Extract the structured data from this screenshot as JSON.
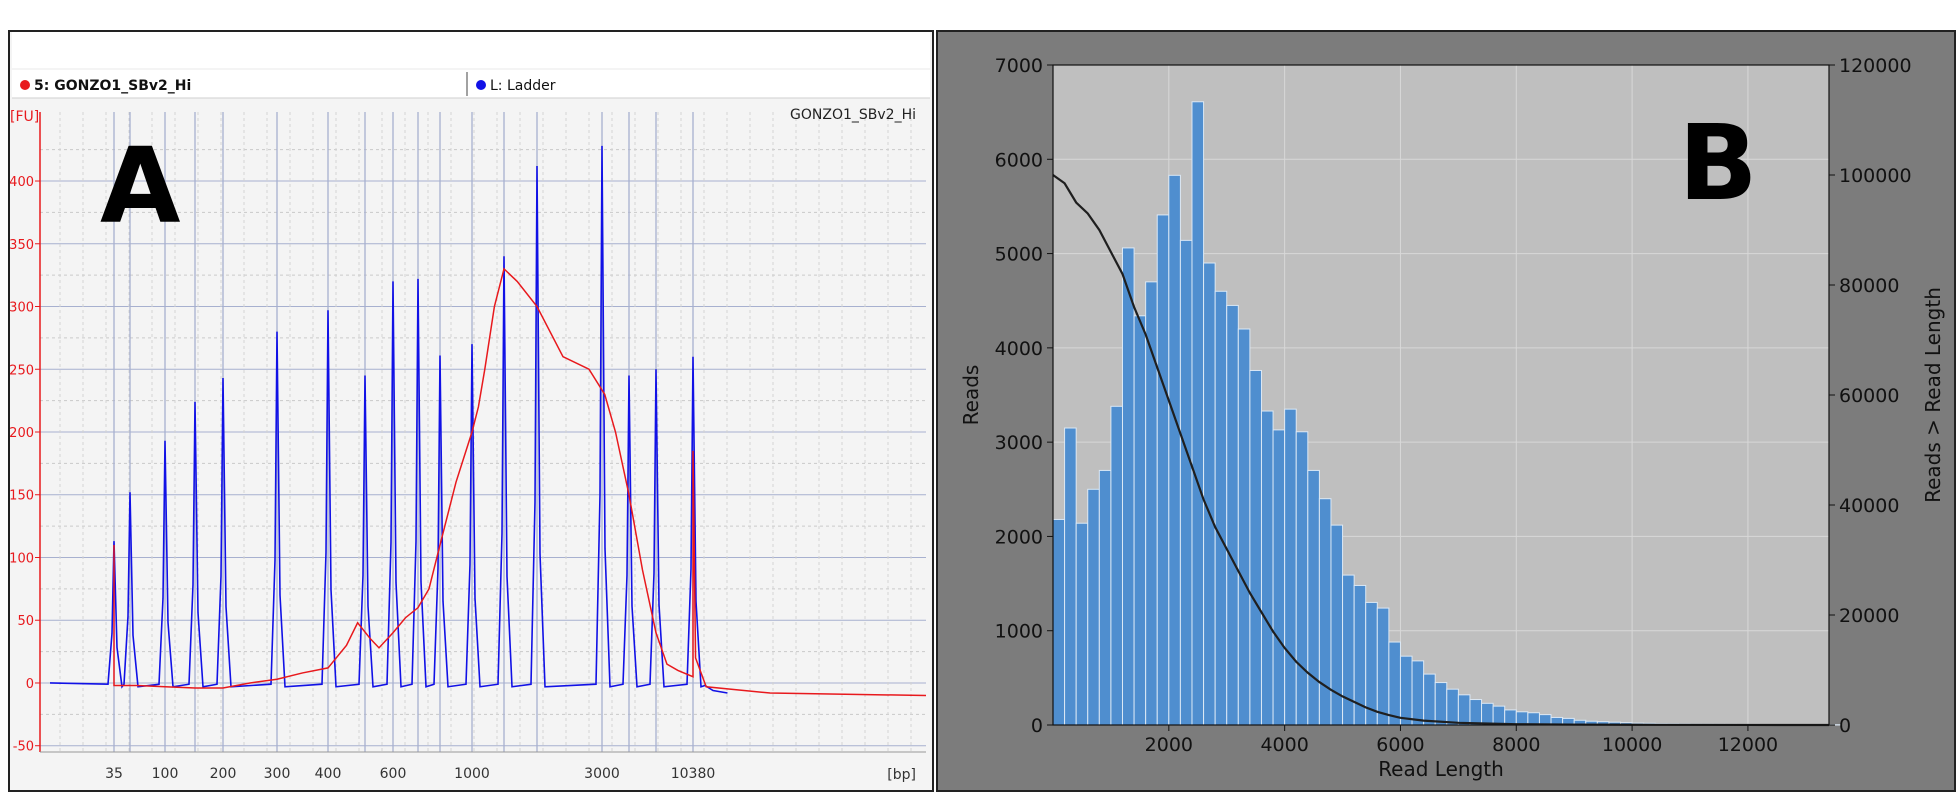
{
  "panel_a": {
    "panel_letter": "A",
    "legend": [
      {
        "label": "5: GONZO1_SBv2_Hi",
        "color": "#e8191d"
      },
      {
        "label": "L: Ladder",
        "color": "#1111e6"
      }
    ],
    "sample_title": "GONZO1_SBv2_Hi",
    "y_unit": "[FU]",
    "x_unit": "[bp]",
    "y_ticks": [
      -50,
      0,
      50,
      100,
      150,
      200,
      250,
      300,
      350,
      400
    ],
    "x_tick_labels": [
      "35",
      "100",
      "200",
      "300",
      "400",
      "600",
      "1000",
      "3000",
      "10380"
    ],
    "y_range": [
      -55,
      455
    ]
  },
  "panel_b": {
    "panel_letter": "B",
    "xlabel": "Read Length",
    "ylabel": "Reads",
    "ylabel_right": "Reads > Read Length",
    "x_ticks": [
      "2000",
      "4000",
      "6000",
      "8000",
      "10000",
      "12000"
    ],
    "y_ticks": [
      "0",
      "1000",
      "2000",
      "3000",
      "4000",
      "5000",
      "6000",
      "7000"
    ],
    "y2_ticks": [
      "0",
      "20000",
      "40000",
      "60000",
      "80000",
      "100000",
      "120000"
    ],
    "bar_color": "#4f8ecf",
    "line_color": "#1f1f1f",
    "plot_bg": "#bfbfbf"
  },
  "chart_data": [
    {
      "type": "line",
      "title": "GONZO1_SBv2_Hi",
      "xlabel": "[bp]",
      "ylabel": "[FU]",
      "ylim": [
        -55,
        455
      ],
      "x_axis": "size (bp)",
      "series": [
        {
          "name": "5: GONZO1_SBv2_Hi",
          "color": "#e8191d",
          "points": [
            [
              35,
              110
            ],
            [
              35,
              -2
            ],
            [
              60,
              -2
            ],
            [
              100,
              -3
            ],
            [
              150,
              -4
            ],
            [
              200,
              -4
            ],
            [
              250,
              0
            ],
            [
              300,
              3
            ],
            [
              350,
              8
            ],
            [
              400,
              12
            ],
            [
              450,
              30
            ],
            [
              480,
              48
            ],
            [
              520,
              35
            ],
            [
              550,
              28
            ],
            [
              600,
              40
            ],
            [
              650,
              52
            ],
            [
              700,
              60
            ],
            [
              750,
              75
            ],
            [
              800,
              110
            ],
            [
              900,
              160
            ],
            [
              1000,
              200
            ],
            [
              1100,
              220
            ],
            [
              1200,
              250
            ],
            [
              1350,
              300
            ],
            [
              1500,
              330
            ],
            [
              1700,
              320
            ],
            [
              2000,
              300
            ],
            [
              2400,
              260
            ],
            [
              2800,
              250
            ],
            [
              3200,
              230
            ],
            [
              4000,
              200
            ],
            [
              5000,
              150
            ],
            [
              6000,
              90
            ],
            [
              7000,
              40
            ],
            [
              8000,
              15
            ],
            [
              9000,
              10
            ],
            [
              10380,
              5
            ],
            [
              10380,
              185
            ],
            [
              10500,
              20
            ],
            [
              11000,
              -3
            ],
            [
              14000,
              -8
            ],
            [
              20000,
              -10
            ]
          ]
        },
        {
          "name": "L: Ladder",
          "color": "#1111e6",
          "peaks": [
            [
              35,
              113
            ],
            [
              50,
              152
            ],
            [
              100,
              193
            ],
            [
              150,
              224
            ],
            [
              200,
              243
            ],
            [
              300,
              280
            ],
            [
              400,
              297
            ],
            [
              500,
              245
            ],
            [
              600,
              320
            ],
            [
              700,
              322
            ],
            [
              800,
              261
            ],
            [
              1000,
              270
            ],
            [
              1500,
              340
            ],
            [
              2000,
              412
            ],
            [
              3000,
              428
            ],
            [
              5000,
              245
            ],
            [
              7000,
              250
            ],
            [
              10380,
              260
            ]
          ]
        }
      ]
    },
    {
      "type": "bar",
      "xlabel": "Read Length",
      "ylabel": "Reads",
      "xlim": [
        0,
        13400
      ],
      "ylim": [
        0,
        7000
      ],
      "bin_width": 200,
      "bin_start": 0,
      "values": [
        2180,
        3150,
        2140,
        2500,
        2700,
        3380,
        5060,
        4340,
        4700,
        5410,
        5830,
        5140,
        6610,
        4900,
        4600,
        4450,
        4200,
        3760,
        3330,
        3130,
        3350,
        3110,
        2700,
        2400,
        2120,
        1590,
        1480,
        1300,
        1240,
        880,
        730,
        680,
        540,
        450,
        380,
        320,
        270,
        230,
        200,
        160,
        140,
        130,
        110,
        80,
        70,
        50,
        40,
        35,
        30,
        25,
        20,
        18,
        15,
        14,
        12,
        10,
        9,
        8,
        7,
        6,
        6,
        5,
        5,
        4,
        4,
        4,
        3,
        3
      ]
    },
    {
      "type": "line",
      "ylabel": "Reads > Read Length",
      "ylim": [
        0,
        120000
      ],
      "points": [
        [
          0,
          100000
        ],
        [
          200,
          98500
        ],
        [
          400,
          95000
        ],
        [
          600,
          93000
        ],
        [
          800,
          90000
        ],
        [
          1000,
          86000
        ],
        [
          1200,
          82000
        ],
        [
          1400,
          76000
        ],
        [
          1600,
          71000
        ],
        [
          1800,
          65000
        ],
        [
          2000,
          59000
        ],
        [
          2200,
          53000
        ],
        [
          2400,
          47000
        ],
        [
          2600,
          41000
        ],
        [
          2800,
          36000
        ],
        [
          3000,
          32000
        ],
        [
          3200,
          28000
        ],
        [
          3400,
          24000
        ],
        [
          3600,
          20500
        ],
        [
          3800,
          17000
        ],
        [
          4000,
          14000
        ],
        [
          4200,
          11500
        ],
        [
          4400,
          9500
        ],
        [
          4600,
          7800
        ],
        [
          4800,
          6400
        ],
        [
          5000,
          5200
        ],
        [
          5200,
          4200
        ],
        [
          5400,
          3200
        ],
        [
          5600,
          2400
        ],
        [
          5800,
          1800
        ],
        [
          6000,
          1300
        ],
        [
          6400,
          800
        ],
        [
          7000,
          400
        ],
        [
          8000,
          150
        ],
        [
          9000,
          80
        ],
        [
          10000,
          40
        ],
        [
          12000,
          10
        ],
        [
          13400,
          0
        ]
      ]
    }
  ]
}
